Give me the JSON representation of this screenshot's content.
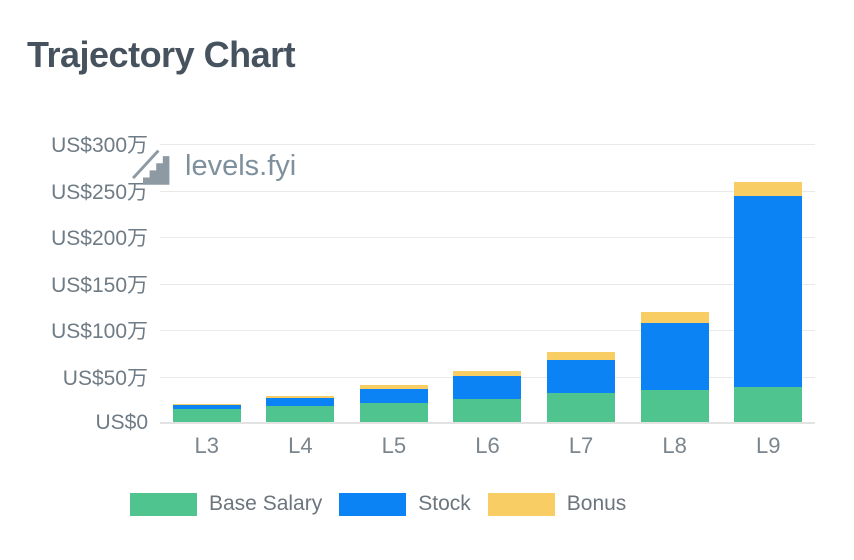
{
  "page": {
    "title": "Trajectory Chart"
  },
  "watermark": {
    "text": "levels.fyi"
  },
  "chart_data": {
    "type": "bar",
    "stacked": true,
    "title": "Trajectory Chart",
    "categories": [
      "L3",
      "L4",
      "L5",
      "L6",
      "L7",
      "L8",
      "L9"
    ],
    "series": [
      {
        "name": "Base Salary",
        "color": "#4fc48e",
        "values": [
          14,
          17,
          20.5,
          25,
          31,
          34,
          38
        ]
      },
      {
        "name": "Stock",
        "color": "#0b83f4",
        "values": [
          4.5,
          8.5,
          15,
          25,
          36,
          73,
          205
        ]
      },
      {
        "name": "Bonus",
        "color": "#f8cd64",
        "values": [
          1,
          3,
          4.5,
          5,
          8,
          11,
          15
        ]
      }
    ],
    "unit": "10000 USD (万)",
    "y_ticks": [
      "US$0",
      "US$50万",
      "US$100万",
      "US$150万",
      "US$200万",
      "US$250万",
      "US$300万"
    ],
    "y_tick_values": [
      0,
      50,
      100,
      150,
      200,
      250,
      300
    ],
    "ylim": [
      0,
      300
    ],
    "grid": "horizontal",
    "legend_position": "bottom"
  },
  "colors": {
    "title": "#46535e",
    "axis_label": "#6f7b85",
    "x_label": "#7b858e",
    "gridline": "#e9e9e9",
    "baseline": "#e2e2e2",
    "watermark": "#8d9aa4",
    "legend_text": "#6c757d"
  }
}
